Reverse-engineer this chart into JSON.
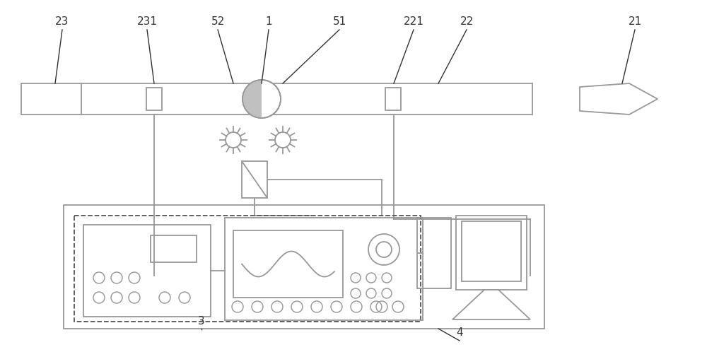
{
  "bg_color": "#ffffff",
  "lc": "#999999",
  "dc": "#555555",
  "tc": "#333333",
  "fig_width": 10.0,
  "fig_height": 4.98
}
